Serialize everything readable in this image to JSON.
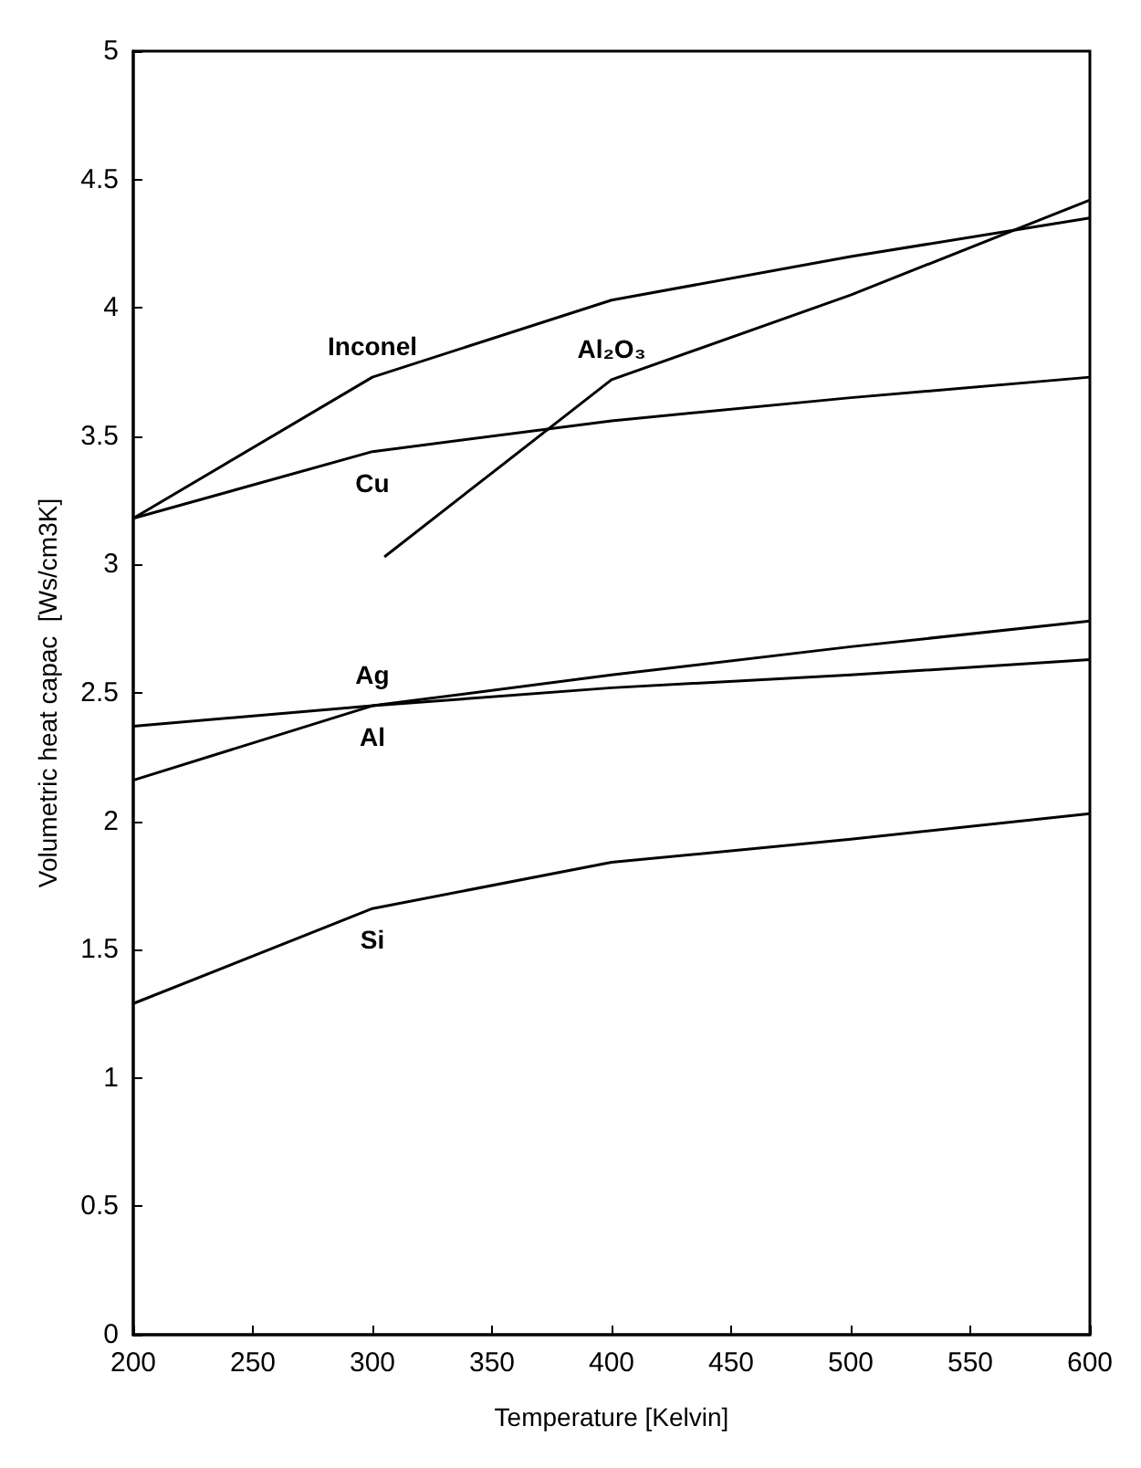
{
  "chart_data": {
    "type": "line",
    "xlabel": "Temperature [Kelvin]",
    "ylabel": "Volumetric heat capac  [Ws/cm3K]",
    "x": [
      200,
      300,
      400,
      500,
      600
    ],
    "series": [
      {
        "name": "Inconel",
        "color": "#000000",
        "values": [
          3.18,
          3.73,
          4.03,
          4.2,
          4.35
        ]
      },
      {
        "name": "Cu",
        "color": "#000000",
        "values": [
          3.18,
          3.44,
          3.56,
          3.65,
          3.73
        ]
      },
      {
        "name": "Al₂O₃",
        "color": "#000000",
        "x": [
          305,
          400,
          500,
          600
        ],
        "values": [
          3.03,
          3.72,
          4.05,
          4.42
        ]
      },
      {
        "name": "Al",
        "color": "#000000",
        "values": [
          2.16,
          2.45,
          2.57,
          2.68,
          2.78
        ]
      },
      {
        "name": "Ag",
        "color": "#000000",
        "values": [
          2.37,
          2.45,
          2.52,
          2.57,
          2.63
        ]
      },
      {
        "name": "Si",
        "color": "#000000",
        "values": [
          1.29,
          1.66,
          1.84,
          1.93,
          2.03
        ]
      }
    ],
    "xlim": [
      200,
      600
    ],
    "xticks": [
      200,
      250,
      300,
      350,
      400,
      450,
      500,
      550,
      600
    ],
    "ylim": [
      0,
      5
    ],
    "yticks": [
      0,
      0.5,
      1,
      1.5,
      2,
      2.5,
      3,
      3.5,
      4,
      4.5,
      5
    ],
    "grid": false,
    "legend": false,
    "marker": "none",
    "line_style": "solid"
  }
}
